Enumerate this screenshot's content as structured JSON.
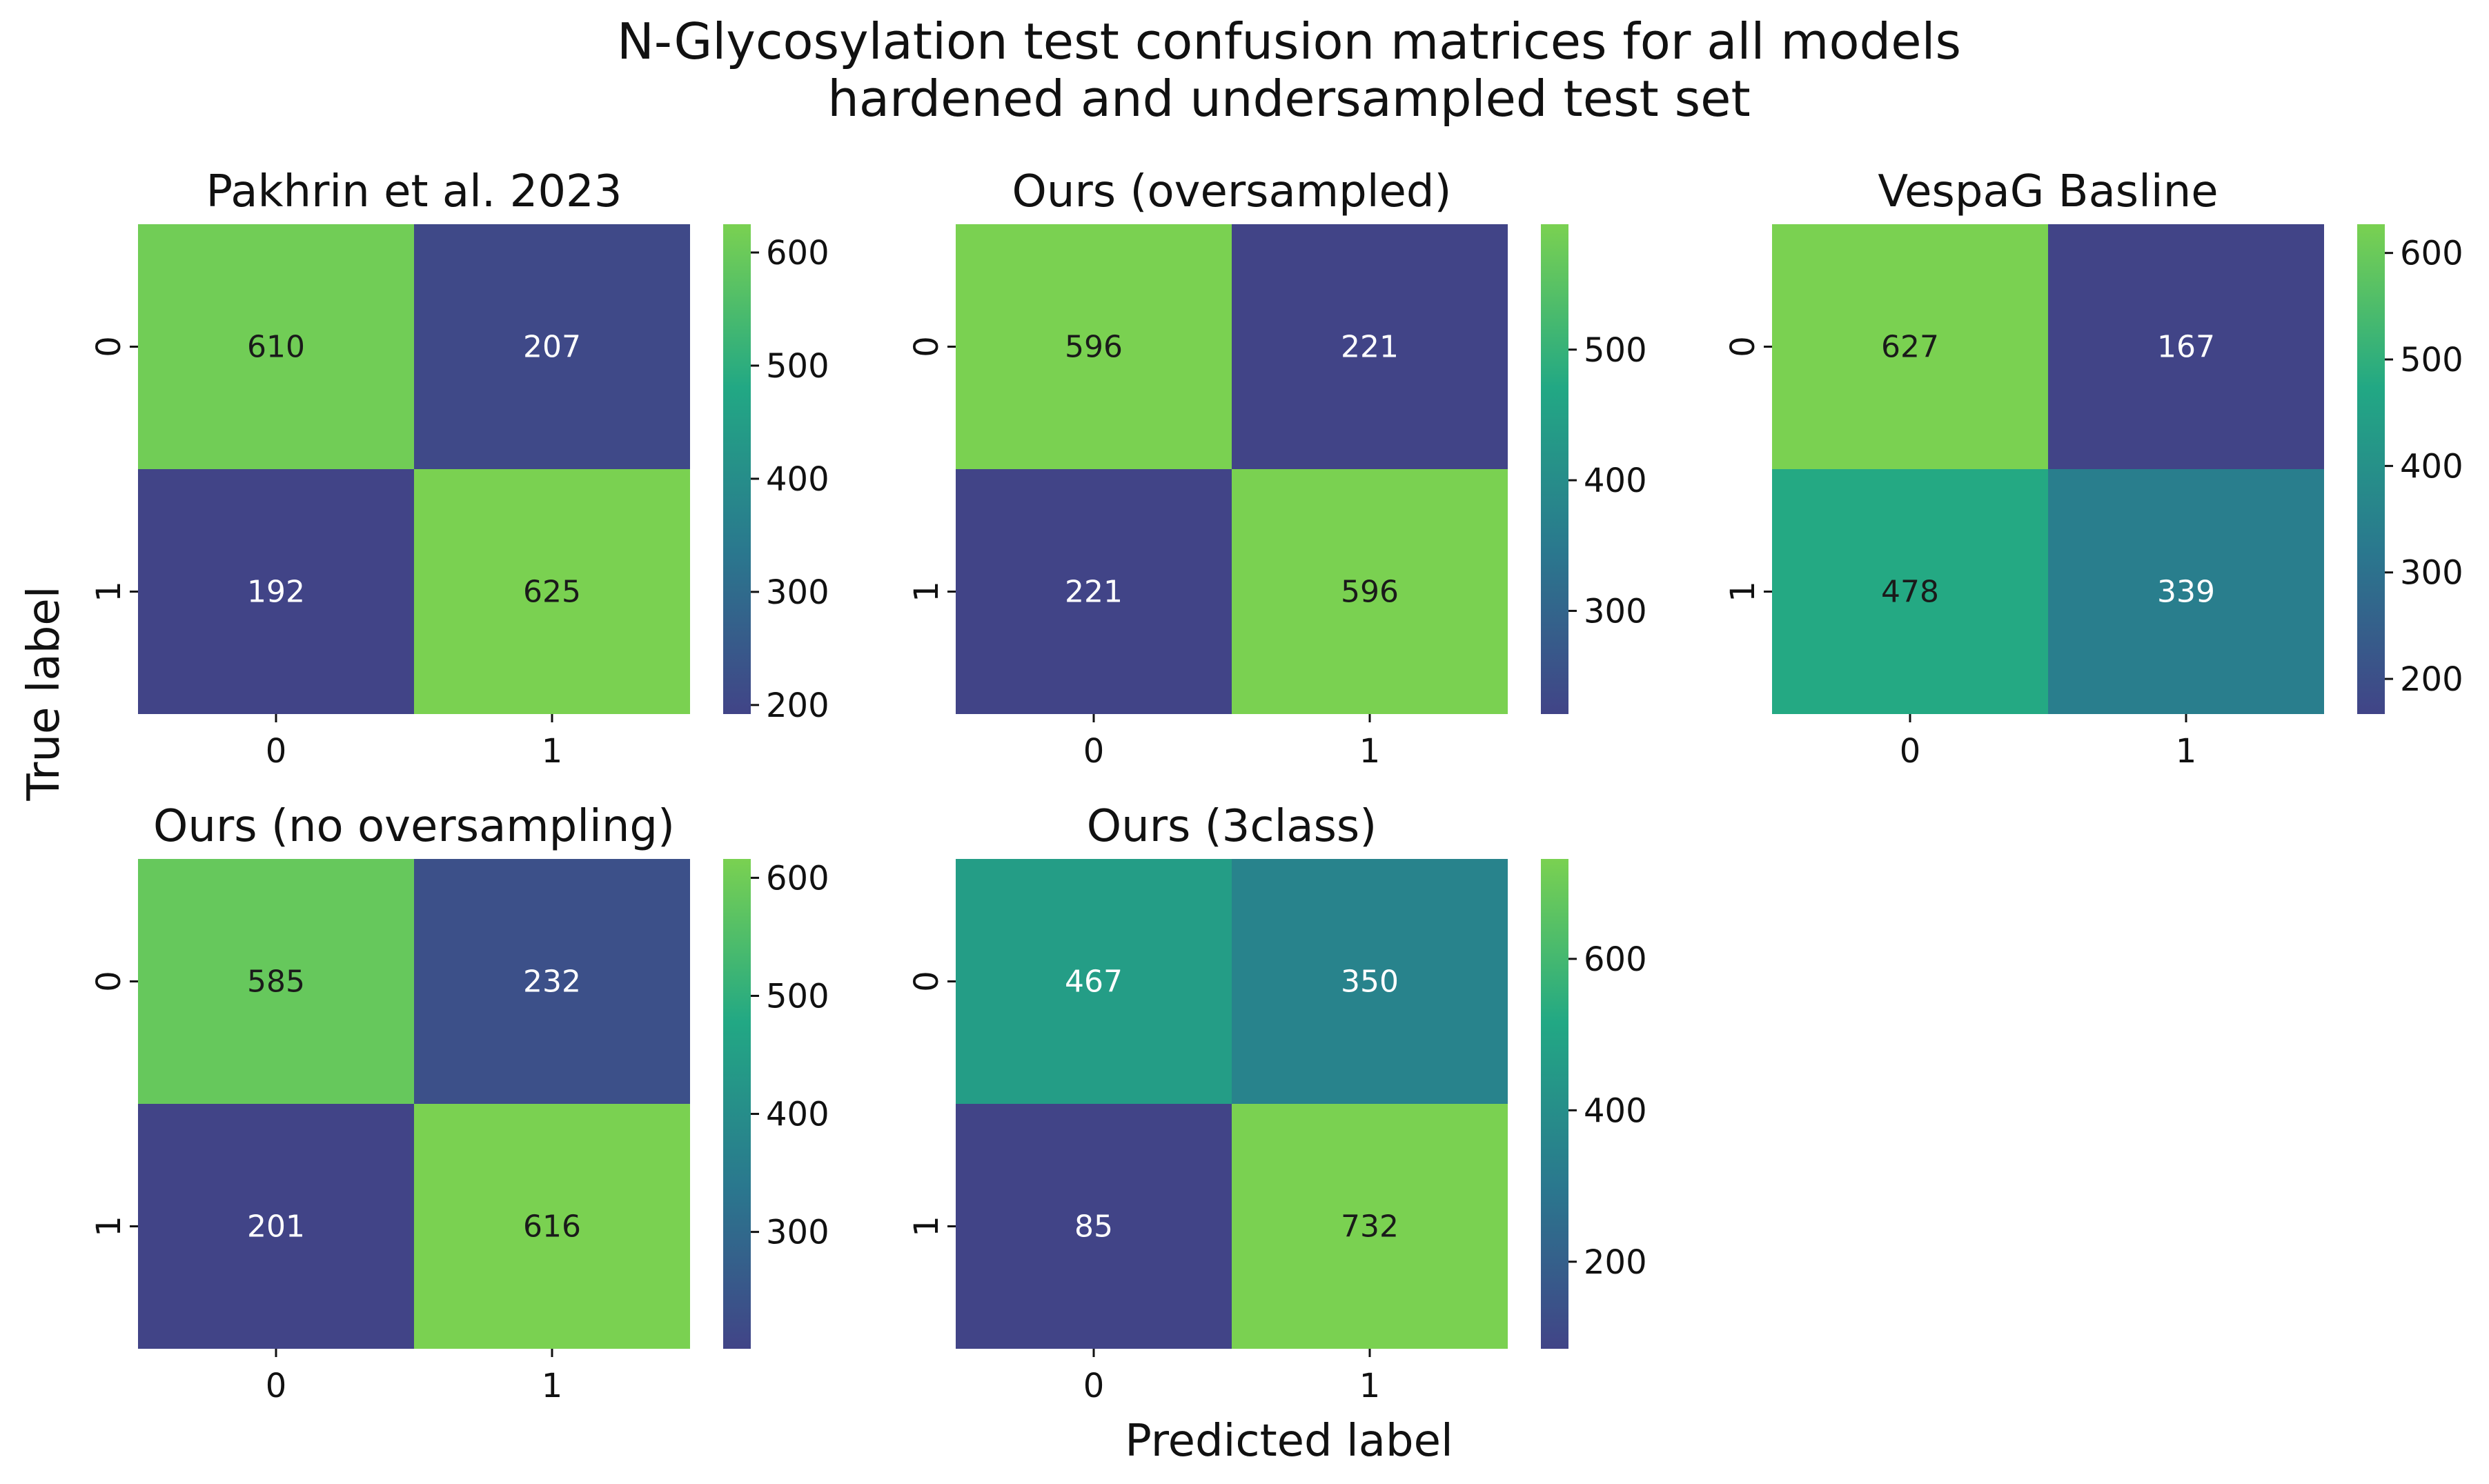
{
  "figure": {
    "title_line1": "N-Glycosylation test confusion matrices for all models",
    "title_line2": "hardened and undersampled test set",
    "xlabel": "Predicted label",
    "ylabel": "True label",
    "colormap": "viridis-like (dark blue to green)",
    "colormap_stops": [
      "#414487",
      "#2a788e",
      "#22a884",
      "#7ad151"
    ]
  },
  "chart_data": [
    {
      "type": "heatmap",
      "title": "Pakhrin et al. 2023",
      "x_categories": [
        "0",
        "1"
      ],
      "y_categories": [
        "0",
        "1"
      ],
      "values": [
        [
          610,
          207
        ],
        [
          192,
          625
        ]
      ],
      "colorbar_range": [
        192,
        625
      ],
      "colorbar_ticks": [
        200,
        300,
        400,
        500,
        600
      ]
    },
    {
      "type": "heatmap",
      "title": "Ours (oversampled)",
      "x_categories": [
        "0",
        "1"
      ],
      "y_categories": [
        "0",
        "1"
      ],
      "values": [
        [
          596,
          221
        ],
        [
          221,
          596
        ]
      ],
      "colorbar_range": [
        221,
        596
      ],
      "colorbar_ticks": [
        300,
        400,
        500
      ]
    },
    {
      "type": "heatmap",
      "title": "VespaG Basline",
      "x_categories": [
        "0",
        "1"
      ],
      "y_categories": [
        "0",
        "1"
      ],
      "values": [
        [
          627,
          167
        ],
        [
          478,
          339
        ]
      ],
      "colorbar_range": [
        167,
        627
      ],
      "colorbar_ticks": [
        200,
        300,
        400,
        500,
        600
      ]
    },
    {
      "type": "heatmap",
      "title": "Ours (no oversampling)",
      "x_categories": [
        "0",
        "1"
      ],
      "y_categories": [
        "0",
        "1"
      ],
      "values": [
        [
          585,
          232
        ],
        [
          201,
          616
        ]
      ],
      "colorbar_range": [
        201,
        616
      ],
      "colorbar_ticks": [
        300,
        400,
        500,
        600
      ]
    },
    {
      "type": "heatmap",
      "title": "Ours (3class)",
      "x_categories": [
        "0",
        "1"
      ],
      "y_categories": [
        "0",
        "1"
      ],
      "values": [
        [
          467,
          350
        ],
        [
          85,
          732
        ]
      ],
      "colorbar_range": [
        85,
        732
      ],
      "colorbar_ticks": [
        200,
        400,
        600
      ]
    }
  ]
}
